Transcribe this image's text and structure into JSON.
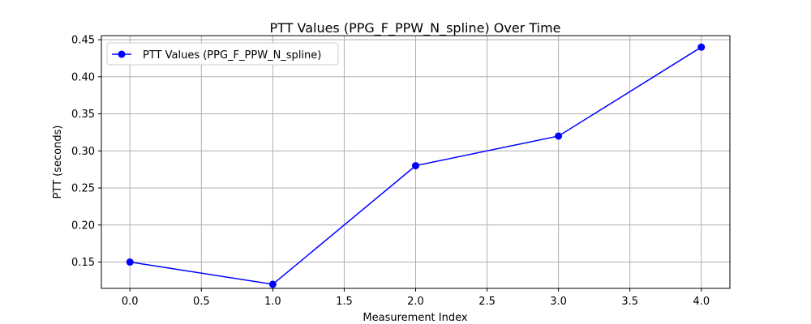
{
  "chart_data": {
    "type": "line",
    "title": "PTT Values (PPG_F_PPW_N_spline) Over Time",
    "xlabel": "Measurement Index",
    "ylabel": "PTT (seconds)",
    "xlim": [
      -0.2,
      4.2
    ],
    "ylim": [
      0.1145,
      0.4555
    ],
    "xticks": [
      0.0,
      0.5,
      1.0,
      1.5,
      2.0,
      2.5,
      3.0,
      3.5,
      4.0
    ],
    "xtick_labels": [
      "0.0",
      "0.5",
      "1.0",
      "1.5",
      "2.0",
      "2.5",
      "3.0",
      "3.5",
      "4.0"
    ],
    "yticks": [
      0.15,
      0.2,
      0.25,
      0.3,
      0.35,
      0.4,
      0.45
    ],
    "ytick_labels": [
      "0.15",
      "0.20",
      "0.25",
      "0.30",
      "0.35",
      "0.40",
      "0.45"
    ],
    "grid": true,
    "legend_position": "top-left",
    "series": [
      {
        "name": "PTT Values (PPG_F_PPW_N_spline)",
        "color": "#0000ff",
        "marker": "circle",
        "x": [
          0,
          1,
          2,
          3,
          4
        ],
        "y": [
          0.15,
          0.12,
          0.28,
          0.32,
          0.44
        ]
      }
    ]
  }
}
